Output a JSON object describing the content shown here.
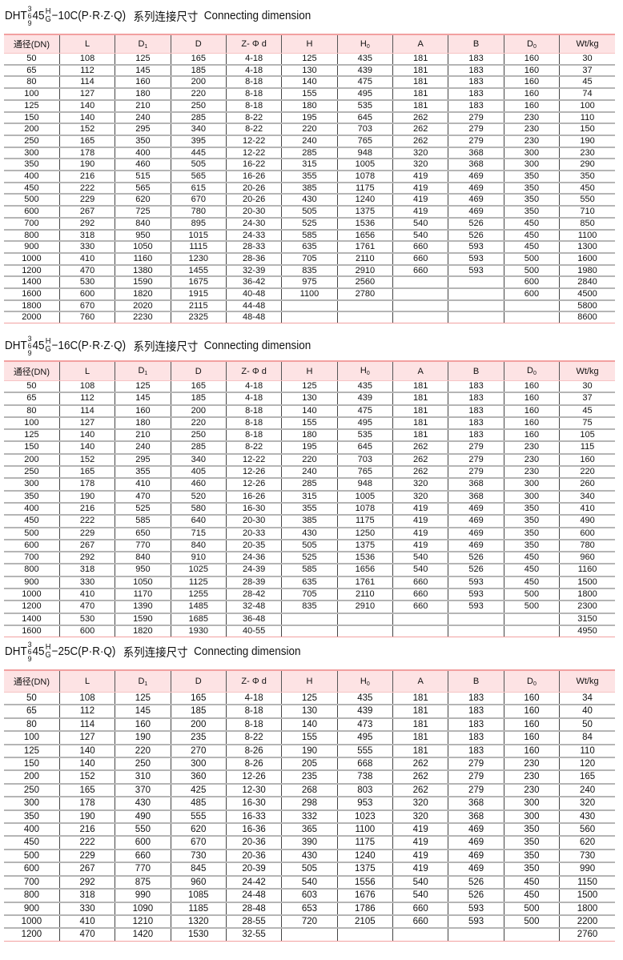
{
  "headers": [
    {
      "main": "通径(DN)",
      "sub": ""
    },
    {
      "main": "L",
      "sub": ""
    },
    {
      "main": "D",
      "sub": "1"
    },
    {
      "main": "D",
      "sub": ""
    },
    {
      "main": "Z- Φ d",
      "sub": ""
    },
    {
      "main": "H",
      "sub": ""
    },
    {
      "main": "H",
      "sub": "0"
    },
    {
      "main": "A",
      "sub": ""
    },
    {
      "main": "B",
      "sub": ""
    },
    {
      "main": "D",
      "sub": "0"
    },
    {
      "main": "Wt/kg",
      "sub": ""
    }
  ],
  "tables": [
    {
      "title": {
        "prefix": "DHT",
        "stack": [
          "3",
          "6",
          "9"
        ],
        "num": "45",
        "frac": [
          "H",
          "G"
        ],
        "suffix": "−10C(P·R·Z·Q)",
        "cn": "系列连接尺寸",
        "en": "Connecting dimension"
      },
      "rows": [
        [
          "50",
          "108",
          "125",
          "165",
          "4-18",
          "125",
          "435",
          "181",
          "183",
          "160",
          "30"
        ],
        [
          "65",
          "112",
          "145",
          "185",
          "4-18",
          "130",
          "439",
          "181",
          "183",
          "160",
          "37"
        ],
        [
          "80",
          "114",
          "160",
          "200",
          "8-18",
          "140",
          "475",
          "181",
          "183",
          "160",
          "45"
        ],
        [
          "100",
          "127",
          "180",
          "220",
          "8-18",
          "155",
          "495",
          "181",
          "183",
          "160",
          "74"
        ],
        [
          "125",
          "140",
          "210",
          "250",
          "8-18",
          "180",
          "535",
          "181",
          "183",
          "160",
          "100"
        ],
        [
          "150",
          "140",
          "240",
          "285",
          "8-22",
          "195",
          "645",
          "262",
          "279",
          "230",
          "110"
        ],
        [
          "200",
          "152",
          "295",
          "340",
          "8-22",
          "220",
          "703",
          "262",
          "279",
          "230",
          "150"
        ],
        [
          "250",
          "165",
          "350",
          "395",
          "12-22",
          "240",
          "765",
          "262",
          "279",
          "230",
          "190"
        ],
        [
          "300",
          "178",
          "400",
          "445",
          "12-22",
          "285",
          "948",
          "320",
          "368",
          "300",
          "230"
        ],
        [
          "350",
          "190",
          "460",
          "505",
          "16-22",
          "315",
          "1005",
          "320",
          "368",
          "300",
          "290"
        ],
        [
          "400",
          "216",
          "515",
          "565",
          "16-26",
          "355",
          "1078",
          "419",
          "469",
          "350",
          "350"
        ],
        [
          "450",
          "222",
          "565",
          "615",
          "20-26",
          "385",
          "1175",
          "419",
          "469",
          "350",
          "450"
        ],
        [
          "500",
          "229",
          "620",
          "670",
          "20-26",
          "430",
          "1240",
          "419",
          "469",
          "350",
          "550"
        ],
        [
          "600",
          "267",
          "725",
          "780",
          "20-30",
          "505",
          "1375",
          "419",
          "469",
          "350",
          "710"
        ],
        [
          "700",
          "292",
          "840",
          "895",
          "24-30",
          "525",
          "1536",
          "540",
          "526",
          "450",
          "850"
        ],
        [
          "800",
          "318",
          "950",
          "1015",
          "24-33",
          "585",
          "1656",
          "540",
          "526",
          "450",
          "1100"
        ],
        [
          "900",
          "330",
          "1050",
          "1115",
          "28-33",
          "635",
          "1761",
          "660",
          "593",
          "450",
          "1300"
        ],
        [
          "1000",
          "410",
          "1160",
          "1230",
          "28-36",
          "705",
          "2110",
          "660",
          "593",
          "500",
          "1600"
        ],
        [
          "1200",
          "470",
          "1380",
          "1455",
          "32-39",
          "835",
          "2910",
          "660",
          "593",
          "500",
          "1980"
        ],
        [
          "1400",
          "530",
          "1590",
          "1675",
          "36-42",
          "975",
          "2560",
          "",
          "",
          "600",
          "2840"
        ],
        [
          "1600",
          "600",
          "1820",
          "1915",
          "40-48",
          "1100",
          "2780",
          "",
          "",
          "600",
          "4500"
        ],
        [
          "1800",
          "670",
          "2020",
          "2115",
          "44-48",
          "",
          "",
          "",
          "",
          "",
          "5800"
        ],
        [
          "2000",
          "760",
          "2230",
          "2325",
          "48-48",
          "",
          "",
          "",
          "",
          "",
          "8600"
        ]
      ]
    },
    {
      "title": {
        "prefix": "DHT",
        "stack": [
          "3",
          "6",
          "9"
        ],
        "num": "45",
        "frac": [
          "H",
          "G"
        ],
        "suffix": "−16C(P·R·Z·Q)",
        "cn": "系列连接尺寸",
        "en": "Connecting dimension"
      },
      "rows": [
        [
          "50",
          "108",
          "125",
          "165",
          "4-18",
          "125",
          "435",
          "181",
          "183",
          "160",
          "30"
        ],
        [
          "65",
          "112",
          "145",
          "185",
          "4-18",
          "130",
          "439",
          "181",
          "183",
          "160",
          "37"
        ],
        [
          "80",
          "114",
          "160",
          "200",
          "8-18",
          "140",
          "475",
          "181",
          "183",
          "160",
          "45"
        ],
        [
          "100",
          "127",
          "180",
          "220",
          "8-18",
          "155",
          "495",
          "181",
          "183",
          "160",
          "75"
        ],
        [
          "125",
          "140",
          "210",
          "250",
          "8-18",
          "180",
          "535",
          "181",
          "183",
          "160",
          "105"
        ],
        [
          "150",
          "140",
          "240",
          "285",
          "8-22",
          "195",
          "645",
          "262",
          "279",
          "230",
          "115"
        ],
        [
          "200",
          "152",
          "295",
          "340",
          "12-22",
          "220",
          "703",
          "262",
          "279",
          "230",
          "160"
        ],
        [
          "250",
          "165",
          "355",
          "405",
          "12-26",
          "240",
          "765",
          "262",
          "279",
          "230",
          "220"
        ],
        [
          "300",
          "178",
          "410",
          "460",
          "12-26",
          "285",
          "948",
          "320",
          "368",
          "300",
          "260"
        ],
        [
          "350",
          "190",
          "470",
          "520",
          "16-26",
          "315",
          "1005",
          "320",
          "368",
          "300",
          "340"
        ],
        [
          "400",
          "216",
          "525",
          "580",
          "16-30",
          "355",
          "1078",
          "419",
          "469",
          "350",
          "410"
        ],
        [
          "450",
          "222",
          "585",
          "640",
          "20-30",
          "385",
          "1175",
          "419",
          "469",
          "350",
          "490"
        ],
        [
          "500",
          "229",
          "650",
          "715",
          "20-33",
          "430",
          "1250",
          "419",
          "469",
          "350",
          "600"
        ],
        [
          "600",
          "267",
          "770",
          "840",
          "20-35",
          "505",
          "1375",
          "419",
          "469",
          "350",
          "780"
        ],
        [
          "700",
          "292",
          "840",
          "910",
          "24-36",
          "525",
          "1536",
          "540",
          "526",
          "450",
          "960"
        ],
        [
          "800",
          "318",
          "950",
          "1025",
          "24-39",
          "585",
          "1656",
          "540",
          "526",
          "450",
          "1160"
        ],
        [
          "900",
          "330",
          "1050",
          "1125",
          "28-39",
          "635",
          "1761",
          "660",
          "593",
          "450",
          "1500"
        ],
        [
          "1000",
          "410",
          "1170",
          "1255",
          "28-42",
          "705",
          "2110",
          "660",
          "593",
          "500",
          "1800"
        ],
        [
          "1200",
          "470",
          "1390",
          "1485",
          "32-48",
          "835",
          "2910",
          "660",
          "593",
          "500",
          "2300"
        ],
        [
          "1400",
          "530",
          "1590",
          "1685",
          "36-48",
          "",
          "",
          "",
          "",
          "",
          "3150"
        ],
        [
          "1600",
          "600",
          "1820",
          "1930",
          "40-55",
          "",
          "",
          "",
          "",
          "",
          "4950"
        ]
      ]
    },
    {
      "title": {
        "prefix": "DHT",
        "stack": [
          "3",
          "6",
          "9"
        ],
        "num": "45",
        "frac": [
          "H",
          "G"
        ],
        "suffix": "−25C(P·R·Q)",
        "cn": "系列连接尺寸",
        "en": "Connecting dimension"
      },
      "rows": [
        [
          "50",
          "108",
          "125",
          "165",
          "4-18",
          "125",
          "435",
          "181",
          "183",
          "160",
          "34"
        ],
        [
          "65",
          "112",
          "145",
          "185",
          "8-18",
          "130",
          "439",
          "181",
          "183",
          "160",
          "40"
        ],
        [
          "80",
          "114",
          "160",
          "200",
          "8-18",
          "140",
          "473",
          "181",
          "183",
          "160",
          "50"
        ],
        [
          "100",
          "127",
          "190",
          "235",
          "8-22",
          "155",
          "495",
          "181",
          "183",
          "160",
          "84"
        ],
        [
          "125",
          "140",
          "220",
          "270",
          "8-26",
          "190",
          "555",
          "181",
          "183",
          "160",
          "110"
        ],
        [
          "150",
          "140",
          "250",
          "300",
          "8-26",
          "205",
          "668",
          "262",
          "279",
          "230",
          "120"
        ],
        [
          "200",
          "152",
          "310",
          "360",
          "12-26",
          "235",
          "738",
          "262",
          "279",
          "230",
          "165"
        ],
        [
          "250",
          "165",
          "370",
          "425",
          "12-30",
          "268",
          "803",
          "262",
          "279",
          "230",
          "240"
        ],
        [
          "300",
          "178",
          "430",
          "485",
          "16-30",
          "298",
          "953",
          "320",
          "368",
          "300",
          "320"
        ],
        [
          "350",
          "190",
          "490",
          "555",
          "16-33",
          "332",
          "1023",
          "320",
          "368",
          "300",
          "430"
        ],
        [
          "400",
          "216",
          "550",
          "620",
          "16-36",
          "365",
          "1100",
          "419",
          "469",
          "350",
          "560"
        ],
        [
          "450",
          "222",
          "600",
          "670",
          "20-36",
          "390",
          "1175",
          "419",
          "469",
          "350",
          "620"
        ],
        [
          "500",
          "229",
          "660",
          "730",
          "20-36",
          "430",
          "1240",
          "419",
          "469",
          "350",
          "730"
        ],
        [
          "600",
          "267",
          "770",
          "845",
          "20-39",
          "505",
          "1375",
          "419",
          "469",
          "350",
          "990"
        ],
        [
          "700",
          "292",
          "875",
          "960",
          "24-42",
          "540",
          "1556",
          "540",
          "526",
          "450",
          "1150"
        ],
        [
          "800",
          "318",
          "990",
          "1085",
          "24-48",
          "603",
          "1676",
          "540",
          "526",
          "450",
          "1500"
        ],
        [
          "900",
          "330",
          "1090",
          "1185",
          "28-48",
          "653",
          "1786",
          "660",
          "593",
          "500",
          "1800"
        ],
        [
          "1000",
          "410",
          "1210",
          "1320",
          "28-55",
          "720",
          "2105",
          "660",
          "593",
          "500",
          "2200"
        ],
        [
          "1200",
          "470",
          "1420",
          "1530",
          "32-55",
          "",
          "",
          "",
          "",
          "",
          "2760"
        ]
      ]
    }
  ]
}
